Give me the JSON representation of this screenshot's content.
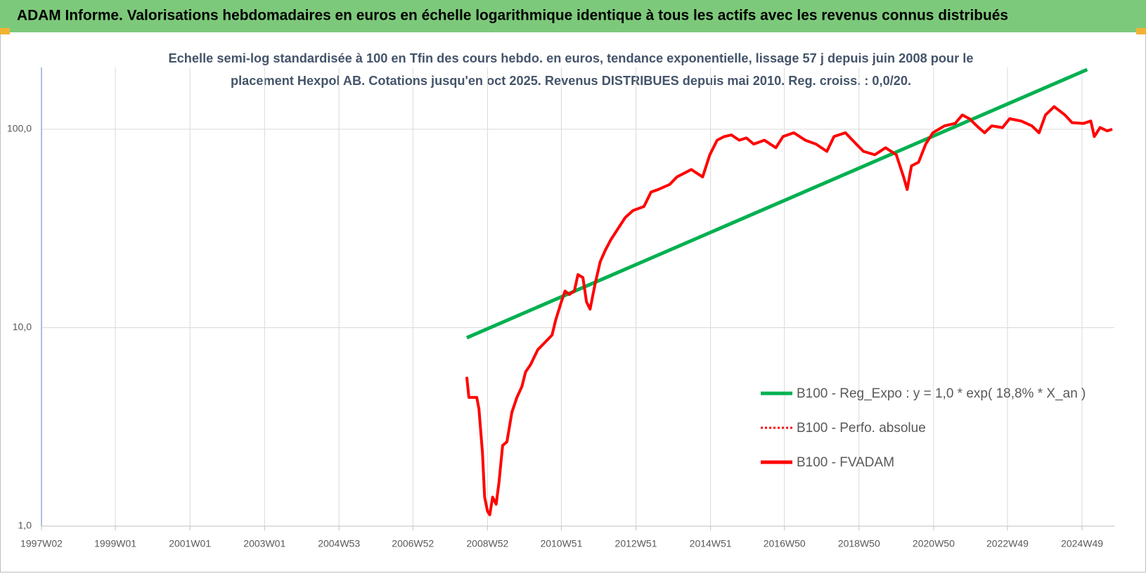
{
  "chart_data": {
    "type": "line",
    "title": "ADAM Informe. Valorisations hebdomadaires en euros en échelle logarithmique identique à tous les actifs avec les revenus connus distribués",
    "subtitle": [
      "Echelle semi-log standardisée à 100 en Tfin des cours hebdo. en euros, tendance exponentielle, lissage 57 j depuis juin 2008 pour le",
      "placement Hexpol AB. Cotations jusqu'en oct 2025. Revenus DISTRIBUES depuis mai 2010. Reg. croiss. : 0,0/20."
    ],
    "log_y": true,
    "grid": true,
    "legend_position": "lower right",
    "xlim": [
      "1997W02",
      "2025W42"
    ],
    "xticks": [
      "1997W02",
      "1999W01",
      "2001W01",
      "2003W01",
      "2004W53",
      "2006W52",
      "2008W52",
      "2010W51",
      "2012W51",
      "2014W51",
      "2016W50",
      "2018W50",
      "2020W50",
      "2022W49",
      "2024W49"
    ],
    "ylim": [
      1,
      200
    ],
    "yticks": [
      {
        "value": 1,
        "label": "1,0"
      },
      {
        "value": 10,
        "label": "10,0"
      },
      {
        "value": 100,
        "label": "100,0"
      }
    ],
    "series": [
      {
        "name": "B100 - Reg_Expo : y = 1,0 * exp( 18,8% *  X_an )",
        "color": "#00b050",
        "line_style": "solid",
        "x": [
          "2008W23",
          "2025W04"
        ],
        "values": [
          8.9,
          200
        ]
      },
      {
        "name": "B100 - Perfo. absolue",
        "color": "#ff0000",
        "line_style": "dotted",
        "x": [],
        "values": []
      },
      {
        "name": "B100 - FVADAM",
        "color": "#ff0000",
        "line_style": "solid",
        "x": [
          "2008W23",
          "2008W26",
          "2008W37",
          "2008W40",
          "2008W45",
          "2008W48",
          "2008W52",
          "2009W03",
          "2009W07",
          "2009W12",
          "2009W16",
          "2009W21",
          "2009W27",
          "2009W34",
          "2009W41",
          "2009W48",
          "2010W01",
          "2010W08",
          "2010W18",
          "2010W28",
          "2010W38",
          "2010W43",
          "2010W51",
          "2011W04",
          "2011W10",
          "2011W17",
          "2011W22",
          "2011W29",
          "2011W34",
          "2011W39",
          "2011W46",
          "2012W01",
          "2012W08",
          "2012W16",
          "2012W26",
          "2012W36",
          "2012W47",
          "2013W10",
          "2013W20",
          "2013W30",
          "2013W46",
          "2014W04",
          "2014W14",
          "2014W24",
          "2014W40",
          "2014W50",
          "2015W08",
          "2015W18",
          "2015W28",
          "2015W39",
          "2015W49",
          "2016W07",
          "2016W22",
          "2016W38",
          "2016W48",
          "2017W11",
          "2017W27",
          "2017W42",
          "2018W05",
          "2018W15",
          "2018W31",
          "2018W41",
          "2019W04",
          "2019W20",
          "2019W35",
          "2019W50",
          "2020W08",
          "2020W13",
          "2020W19",
          "2020W29",
          "2020W39",
          "2020W49",
          "2021W13",
          "2021W28",
          "2021W38",
          "2021W48",
          "2022W06",
          "2022W17",
          "2022W27",
          "2022W42",
          "2022W52",
          "2023W16",
          "2023W31",
          "2023W41",
          "2023W50",
          "2024W10",
          "2024W25",
          "2024W35",
          "2024W51",
          "2025W09",
          "2025W14",
          "2025W22",
          "2025W32",
          "2025W39"
        ],
        "values": [
          5.65,
          4.45,
          4.45,
          3.9,
          2.35,
          1.4,
          1.19,
          1.14,
          1.4,
          1.29,
          1.67,
          2.55,
          2.66,
          3.75,
          4.45,
          5.05,
          5.99,
          6.52,
          7.74,
          8.43,
          9.18,
          10.9,
          13.5,
          15.3,
          14.7,
          15.3,
          18.5,
          17.9,
          13.5,
          12.4,
          16.6,
          21.5,
          24.5,
          27.8,
          31.6,
          35.9,
          39.0,
          40.8,
          48.3,
          49.7,
          52.7,
          57.5,
          60.0,
          62.7,
          57.5,
          74.4,
          88.1,
          91.9,
          93.6,
          88.1,
          90.4,
          84.2,
          88.1,
          80.7,
          91.9,
          96.0,
          88.1,
          84.2,
          77.4,
          91.9,
          96.0,
          88.1,
          77.4,
          74.4,
          80.7,
          74.4,
          57.5,
          49.7,
          65.4,
          68.2,
          84.2,
          96.0,
          104,
          107,
          118,
          113,
          104,
          96.0,
          104,
          102,
          113,
          110,
          104,
          96.0,
          118,
          130,
          118,
          108,
          107,
          110,
          91.9,
          102,
          98.2,
          100
        ]
      }
    ]
  }
}
